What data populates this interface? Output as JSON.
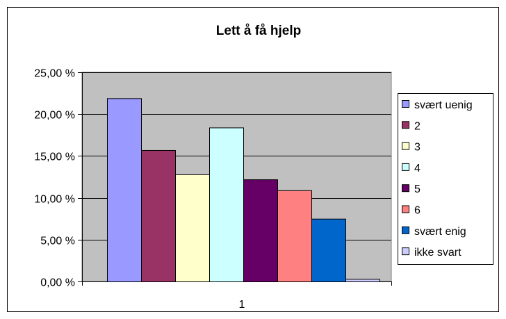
{
  "chart_data": {
    "type": "bar",
    "title": "Lett å få hjelp",
    "categories": [
      "1"
    ],
    "xlabel": "",
    "ylabel": "",
    "ylim": [
      0,
      25
    ],
    "y_ticks": [
      "0,00 %",
      "5,00 %",
      "10,00 %",
      "15,00 %",
      "20,00 %",
      "25,00 %"
    ],
    "y_tick_values": [
      0,
      5,
      10,
      15,
      20,
      25
    ],
    "grid": true,
    "legend_position": "right",
    "plot_background": "#c0c0c0",
    "series": [
      {
        "name": "svært uenig",
        "values": [
          21.9
        ],
        "color": "#9999ff"
      },
      {
        "name": "2",
        "values": [
          15.7
        ],
        "color": "#993366"
      },
      {
        "name": "3",
        "values": [
          12.8
        ],
        "color": "#ffffcc"
      },
      {
        "name": "4",
        "values": [
          18.4
        ],
        "color": "#ccffff"
      },
      {
        "name": "5",
        "values": [
          12.2
        ],
        "color": "#660066"
      },
      {
        "name": "6",
        "values": [
          10.9
        ],
        "color": "#ff8080"
      },
      {
        "name": "svært enig",
        "values": [
          7.5
        ],
        "color": "#0066cc"
      },
      {
        "name": "ikke svart",
        "values": [
          0.3
        ],
        "color": "#ccccff"
      }
    ]
  }
}
